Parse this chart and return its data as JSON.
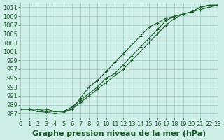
{
  "background_color": "#d0eee8",
  "grid_color": "#a0c8c0",
  "line_color": "#1a5c2a",
  "marker_color": "#1a5c2a",
  "title": "Graphe pression niveau de la mer (hPa)",
  "xlabel": "",
  "ylabel": "",
  "xlim": [
    0,
    23
  ],
  "ylim": [
    986,
    1012
  ],
  "yticks": [
    987,
    989,
    991,
    993,
    995,
    997,
    999,
    1001,
    1003,
    1005,
    1007,
    1009,
    1011
  ],
  "xticks": [
    0,
    1,
    2,
    3,
    4,
    5,
    6,
    7,
    8,
    9,
    10,
    11,
    12,
    13,
    14,
    15,
    16,
    17,
    18,
    19,
    20,
    21,
    22,
    23
  ],
  "line1_x": [
    0,
    1,
    2,
    3,
    4,
    5,
    6,
    7,
    8,
    9,
    10,
    11,
    12,
    13,
    14,
    15,
    16,
    17,
    18,
    19,
    20,
    21,
    22,
    23
  ],
  "line1_y": [
    988,
    988,
    988,
    988,
    987.5,
    987.5,
    988.5,
    990,
    991.5,
    993,
    995,
    996,
    998,
    1000,
    1002,
    1004,
    1006,
    1008,
    1009,
    1009.5,
    1010,
    1011,
    1011.5,
    1011.5
  ],
  "line2_x": [
    0,
    1,
    2,
    3,
    4,
    5,
    6,
    7,
    8,
    9,
    10,
    11,
    12,
    13,
    14,
    15,
    16,
    17,
    18,
    19,
    20,
    21,
    22,
    23
  ],
  "line2_y": [
    988,
    988,
    988,
    987.5,
    987.5,
    987.5,
    988,
    989.5,
    991,
    992.5,
    994,
    995.5,
    997,
    999,
    1001,
    1003,
    1005,
    1007,
    1008.5,
    1009.5,
    1010,
    1010.5,
    1011,
    1011.5
  ],
  "line3_x": [
    0,
    1,
    2,
    3,
    4,
    5,
    6,
    7,
    8,
    9,
    10,
    11,
    12,
    13,
    14,
    15,
    16,
    17,
    18,
    19,
    20,
    21,
    22,
    23
  ],
  "line3_y": [
    988,
    988,
    987.5,
    987.3,
    987.0,
    987.2,
    988.0,
    990.5,
    993,
    994.5,
    996.5,
    998.5,
    1000.5,
    1002.5,
    1004.5,
    1006.5,
    1007.5,
    1008.5,
    1009,
    1009.5,
    1010,
    1011,
    1011.5,
    1011.5
  ],
  "title_fontsize": 8,
  "tick_fontsize": 6,
  "title_bold": true
}
